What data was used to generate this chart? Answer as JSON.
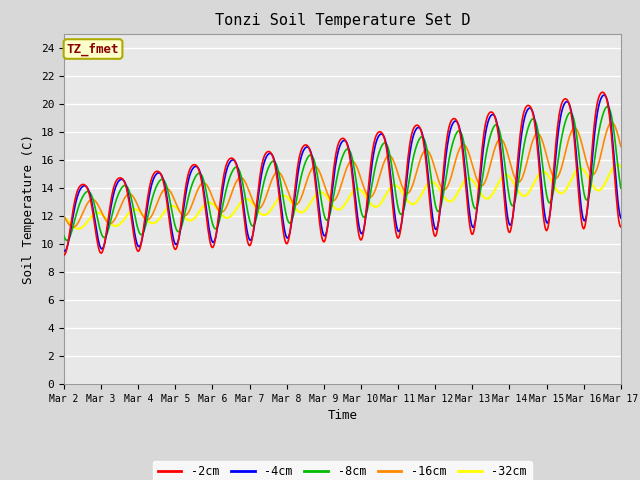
{
  "title": "Tonzi Soil Temperature Set D",
  "xlabel": "Time",
  "ylabel": "Soil Temperature (C)",
  "ylim": [
    0,
    25
  ],
  "yticks": [
    0,
    2,
    4,
    6,
    8,
    10,
    12,
    14,
    16,
    18,
    20,
    22,
    24
  ],
  "annotation_text": "TZ_fmet",
  "annotation_color": "#8B0000",
  "annotation_bg": "#FFFFCC",
  "annotation_edge": "#AAAA00",
  "bg_color": "#E0E0E0",
  "series": {
    "neg2cm": {
      "label": "-2cm",
      "color": "#FF0000"
    },
    "neg4cm": {
      "label": "-4cm",
      "color": "#0000FF"
    },
    "neg8cm": {
      "label": "-8cm",
      "color": "#00BB00"
    },
    "neg16cm": {
      "label": "-16cm",
      "color": "#FF8800"
    },
    "neg32cm": {
      "label": "-32cm",
      "color": "#FFFF00"
    }
  },
  "n_days": 15,
  "xtick_labels": [
    "Mar 2",
    "Mar 3",
    "Mar 4",
    "Mar 5",
    "Mar 6",
    "Mar 7",
    "Mar 8",
    "Mar 9",
    "Mar 10",
    "Mar 11",
    "Mar 12",
    "Mar 13",
    "Mar 14",
    "Mar 15",
    "Mar 16",
    "Mar 17"
  ]
}
